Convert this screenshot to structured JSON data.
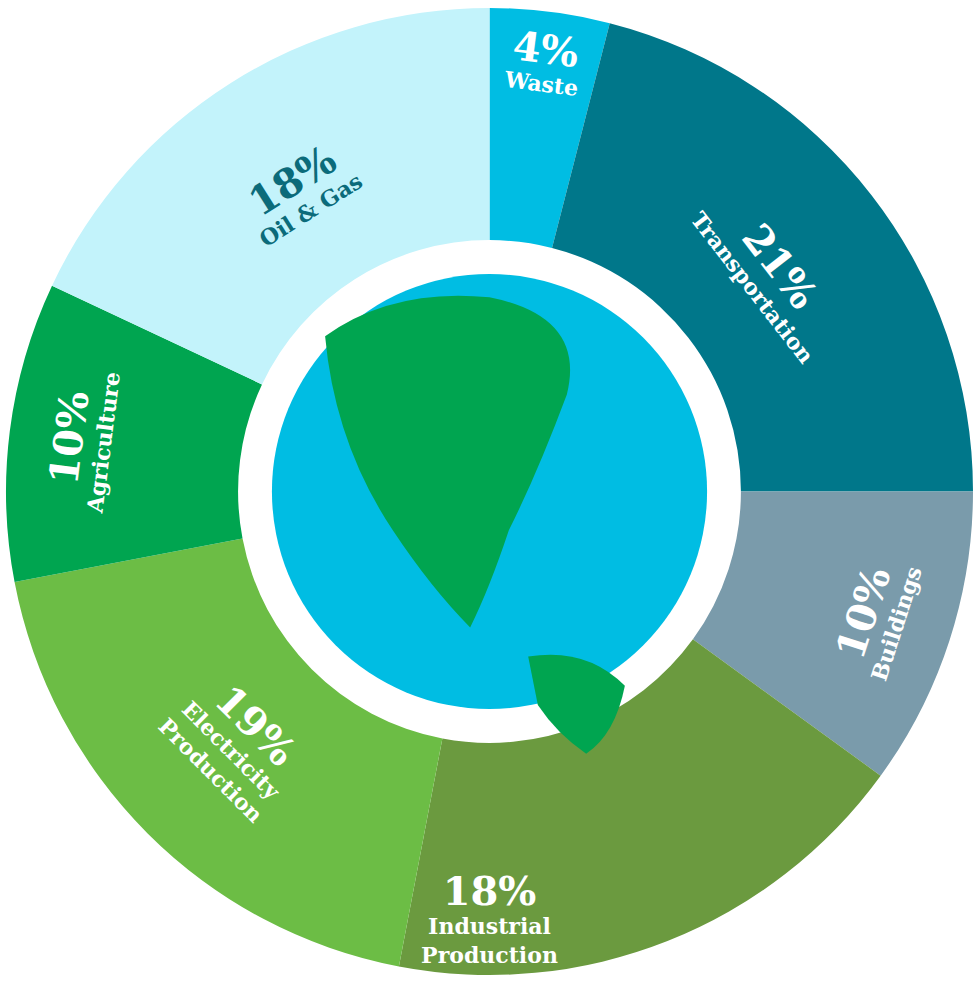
{
  "chart_data": {
    "type": "pie",
    "categories": [
      "Waste",
      "Transportation",
      "Buildings",
      "Industrial Production",
      "Electricity Production",
      "Agriculture",
      "Oil & Gas"
    ],
    "values": [
      4,
      21,
      10,
      18,
      19,
      10,
      18
    ],
    "value_labels": [
      "4%",
      "21%",
      "10%",
      "18%",
      "19%",
      "10%",
      "18%"
    ],
    "colors": [
      "#00bde3",
      "#00778a",
      "#7a9bab",
      "#6b9a3f",
      "#6cbd45",
      "#00a550",
      "#c3f3fb"
    ],
    "data_labels": true
  }
}
